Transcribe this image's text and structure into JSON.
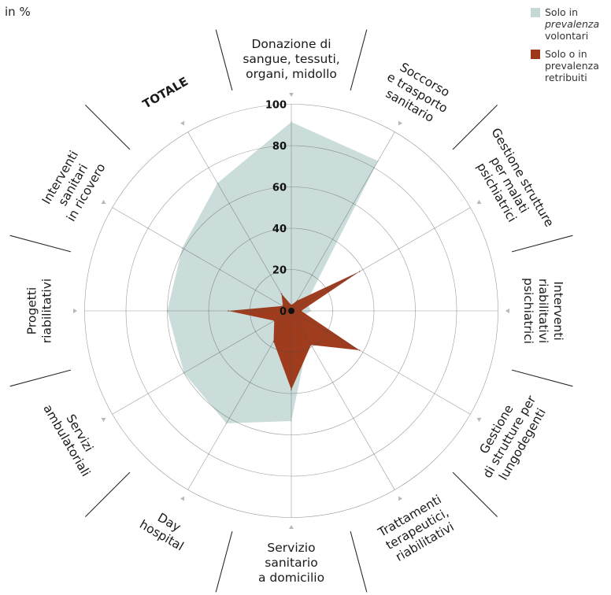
{
  "unit_label": "in %",
  "legend": [
    {
      "line1": "Solo in",
      "line2": "prevalenza",
      "line3": "volontari",
      "color": "#c4d9d6"
    },
    {
      "line1": "Solo o in",
      "line2": "prevalenza",
      "line3": "retribuiti",
      "color": "#9e3718"
    }
  ],
  "chart_data": {
    "type": "radar",
    "title": "",
    "subtitle": "",
    "unit": "in %",
    "range": [
      0,
      100
    ],
    "ticks": [
      0,
      20,
      40,
      60,
      80,
      100
    ],
    "categories": [
      {
        "lines": [
          "Donazione di",
          "sangue, tessuti,",
          "organi, midollo"
        ]
      },
      {
        "lines": [
          "Soccorso",
          "e trasporto",
          "sanitario"
        ]
      },
      {
        "lines": [
          "Gestione strutture",
          "per malati",
          "psichiatrici"
        ]
      },
      {
        "lines": [
          "Interventi",
          "riabilitativi",
          "psichiatrici"
        ]
      },
      {
        "lines": [
          "Gestione",
          "di strutture per",
          "lungodegenti"
        ]
      },
      {
        "lines": [
          "Trattamenti",
          "terapeutici,",
          "riabilitativi"
        ]
      },
      {
        "lines": [
          "Servizio",
          "sanitario",
          "a domicilio"
        ]
      },
      {
        "lines": [
          "Day",
          "hospital"
        ]
      },
      {
        "lines": [
          "Servizi",
          "ambulatoriali"
        ]
      },
      {
        "lines": [
          "Progetti",
          "riabilitativi"
        ]
      },
      {
        "lines": [
          "Interventi",
          "sanitari",
          "in ricovero"
        ]
      },
      {
        "lines": [
          "TOTALE"
        ]
      }
    ],
    "series": [
      {
        "name": "Solo in prevalenza volontari",
        "color": "#c4d9d6",
        "values": [
          96,
          88,
          9,
          10,
          6,
          17,
          56,
          66,
          63,
          63,
          64,
          75
        ]
      },
      {
        "name": "Solo o in prevalenza retribuiti",
        "color": "#9e3718",
        "values": [
          3,
          6,
          40,
          5,
          40,
          20,
          40,
          18,
          10,
          32,
          5,
          10
        ]
      }
    ]
  }
}
